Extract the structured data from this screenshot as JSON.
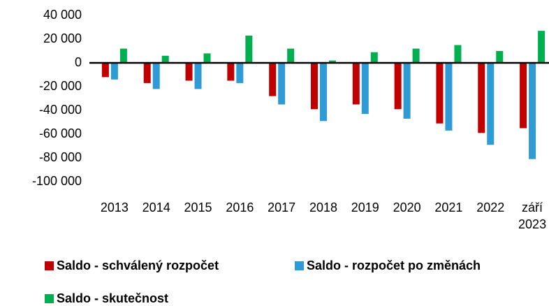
{
  "chart_data": {
    "type": "bar",
    "categories": [
      "2013",
      "2014",
      "2015",
      "2016",
      "2017",
      "2018",
      "2019",
      "2020",
      "2021",
      "2022",
      "září 2023"
    ],
    "series": [
      {
        "name": "Saldo - schválený rozpočet",
        "color": "#c00000",
        "values": [
          -12000,
          -17000,
          -15000,
          -15000,
          -28000,
          -39000,
          -35000,
          -39000,
          -51000,
          -59000,
          -55000
        ]
      },
      {
        "name": "Saldo - rozpočet po změnách",
        "color": "#2e9bd6",
        "values": [
          -14000,
          -22000,
          -22000,
          -17000,
          -35000,
          -49000,
          -43000,
          -47000,
          -57000,
          -69000,
          -81000
        ]
      },
      {
        "name": "Saldo - skutečnost",
        "color": "#00b050",
        "values": [
          12000,
          6000,
          8000,
          23000,
          12000,
          2000,
          9000,
          12000,
          15000,
          10000,
          27000
        ]
      }
    ],
    "ylim": [
      -100000,
      40000
    ],
    "yticks": [
      {
        "value": -100000,
        "label": "-100 000"
      },
      {
        "value": -80000,
        "label": "-80 000"
      },
      {
        "value": -60000,
        "label": "-60 000"
      },
      {
        "value": -40000,
        "label": "-40 000"
      },
      {
        "value": -20000,
        "label": "-20 000"
      },
      0,
      {
        "value": 20000,
        "label": "20 000"
      },
      {
        "value": 40000,
        "label": "40 000"
      }
    ]
  }
}
